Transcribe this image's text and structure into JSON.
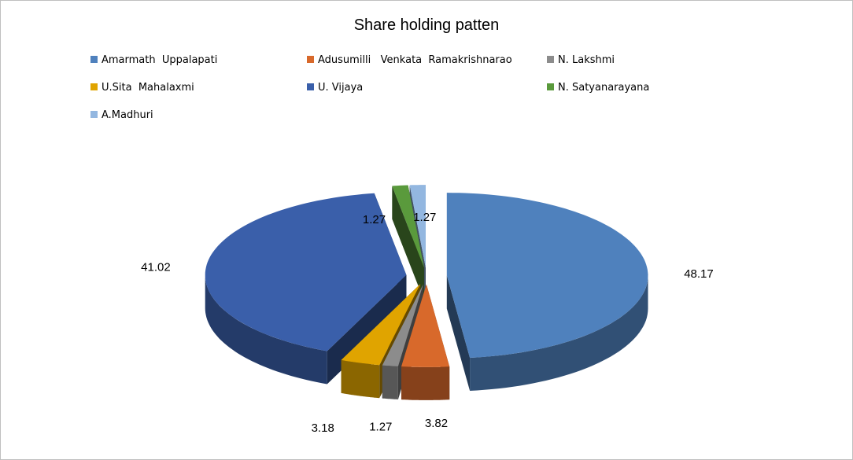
{
  "chart_data": {
    "type": "pie",
    "variant": "3d-exploded",
    "title": "Share holding patten",
    "legend_position": "top",
    "series": [
      {
        "name": "Amarmath  Uppalapati",
        "value": 48.17,
        "label": "48.17",
        "color": "#4F81BD"
      },
      {
        "name": "Adusumilli   Venkata  Ramakrishnarao",
        "value": 3.82,
        "label": "3.82",
        "color": "#D8692B"
      },
      {
        "name": "N. Lakshmi",
        "value": 1.27,
        "label": "1.27",
        "color": "#8C8C8C"
      },
      {
        "name": "U.Sita  Mahalaxmi",
        "value": 3.18,
        "label": "3.18",
        "color": "#E0A400"
      },
      {
        "name": "U. Vijaya",
        "value": 41.02,
        "label": "41.02",
        "color": "#3A5FAA"
      },
      {
        "name": "N. Satyanarayana",
        "value": 1.27,
        "label": "1.27",
        "color": "#5A9A3C"
      },
      {
        "name": "A.Madhuri",
        "value": 1.27,
        "label": "1.27",
        "color": "#93B7E0"
      }
    ]
  }
}
